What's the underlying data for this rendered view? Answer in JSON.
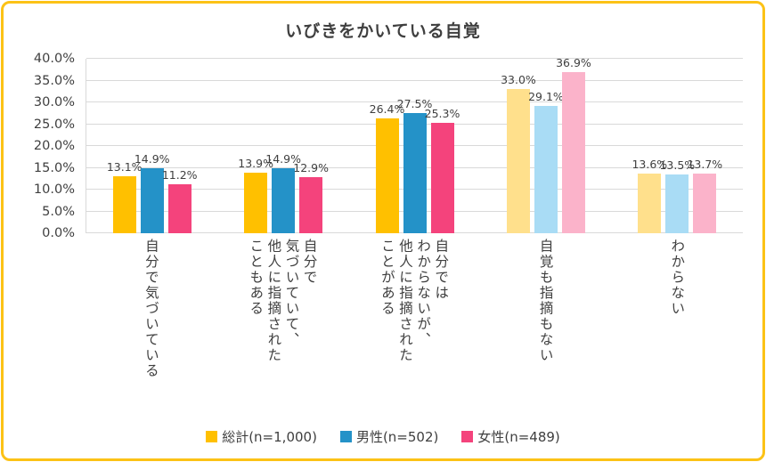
{
  "frame": {
    "border_color": "#FCC216",
    "background": "#FFFFFF"
  },
  "chart_data": {
    "type": "bar",
    "title": "いびきをかいている自覚",
    "xlabel": "",
    "ylabel": "",
    "ylim": [
      0,
      40
    ],
    "ytick_labels": [
      "0.0%",
      "5.0%",
      "10.0%",
      "15.0%",
      "20.0%",
      "25.0%",
      "30.0%",
      "35.0%",
      "40.0%"
    ],
    "grid": true,
    "legend_position": "bottom",
    "value_suffix": "%",
    "categories": [
      {
        "label": "自分で気づいている",
        "lines": [
          "自分で気づいている"
        ],
        "shade": "strong"
      },
      {
        "label": "自分で気づいていて、他人に指摘されたこともある",
        "lines": [
          "自分で",
          "気づいていて、",
          "他人に指摘された",
          "こともある"
        ],
        "shade": "strong"
      },
      {
        "label": "自分ではわからないが、他人に指摘されたことがある",
        "lines": [
          "自分では",
          "わからないが、",
          "他人に指摘された",
          "ことがある"
        ],
        "shade": "strong"
      },
      {
        "label": "自覚も指摘もない",
        "lines": [
          "自覚も指摘もない"
        ],
        "shade": "light"
      },
      {
        "label": "わからない",
        "lines": [
          "わからない"
        ],
        "shade": "light"
      }
    ],
    "series": [
      {
        "name": "総計(n=1,000)",
        "color": "#FFC000",
        "light_color": "#FFE08C",
        "values": [
          13.1,
          13.9,
          26.4,
          33.0,
          13.6
        ]
      },
      {
        "name": "男性(n=502)",
        "color": "#2492C8",
        "light_color": "#A9DCF5",
        "values": [
          14.9,
          14.9,
          27.5,
          29.1,
          13.5
        ]
      },
      {
        "name": "女性(n=489)",
        "color": "#F4437C",
        "light_color": "#FBB3CA",
        "values": [
          11.2,
          12.9,
          25.3,
          36.9,
          13.7
        ]
      }
    ]
  }
}
